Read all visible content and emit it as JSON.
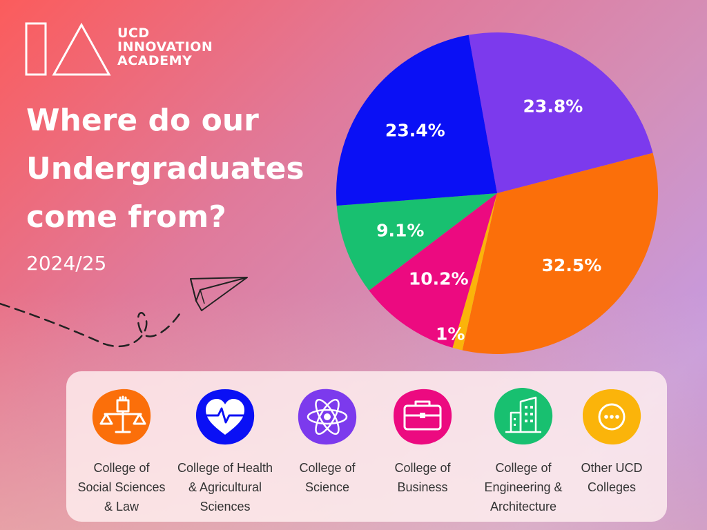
{
  "brand": {
    "lines": [
      "UCD",
      "INNOVATION",
      "ACADEMY"
    ]
  },
  "headline": {
    "lines": [
      "Where do our",
      "Undergraduates",
      "come from?"
    ]
  },
  "subtitle": "2024/25",
  "colors": {
    "text": "#ffffff",
    "legend_bg": "#fdf0f0"
  },
  "chart_data": {
    "type": "pie",
    "title": "Where do our Undergraduates come from?",
    "subtitle": "2024/25",
    "slices": [
      {
        "name": "College of Science",
        "value": 23.8,
        "label": "23.8%",
        "color": "#7c3aed"
      },
      {
        "name": "College of Social Sciences & Law",
        "value": 32.5,
        "label": "32.5%",
        "color": "#fb6f0a"
      },
      {
        "name": "Other UCD Colleges",
        "value": 1.0,
        "label": "1%",
        "color": "#fbb40a"
      },
      {
        "name": "College of Business",
        "value": 10.2,
        "label": "10.2%",
        "color": "#ec0a80"
      },
      {
        "name": "College of Engineering & Architecture",
        "value": 9.1,
        "label": "9.1%",
        "color": "#18c070"
      },
      {
        "name": "College of Health & Agricultural Sciences",
        "value": 23.4,
        "label": "23.4%",
        "color": "#0a10f5"
      }
    ],
    "legend_position": "bottom"
  },
  "legend": [
    {
      "icon": "scales-of-justice-fist-icon",
      "color": "#fb6f0a",
      "lines": [
        "College of",
        "Social Sciences",
        "& Law"
      ]
    },
    {
      "icon": "heart-pulse-icon",
      "color": "#0a10f5",
      "lines": [
        "College of Health",
        "& Agricultural",
        "Sciences"
      ]
    },
    {
      "icon": "atom-icon",
      "color": "#7c3aed",
      "lines": [
        "College of",
        "Science"
      ]
    },
    {
      "icon": "briefcase-icon",
      "color": "#ec0a80",
      "lines": [
        "College of",
        "Business"
      ]
    },
    {
      "icon": "buildings-icon",
      "color": "#18c070",
      "lines": [
        "College of",
        "Engineering &",
        "Architecture"
      ]
    },
    {
      "icon": "ellipsis-icon",
      "color": "#fbb40a",
      "lines": [
        "Other UCD",
        "Colleges"
      ]
    }
  ]
}
